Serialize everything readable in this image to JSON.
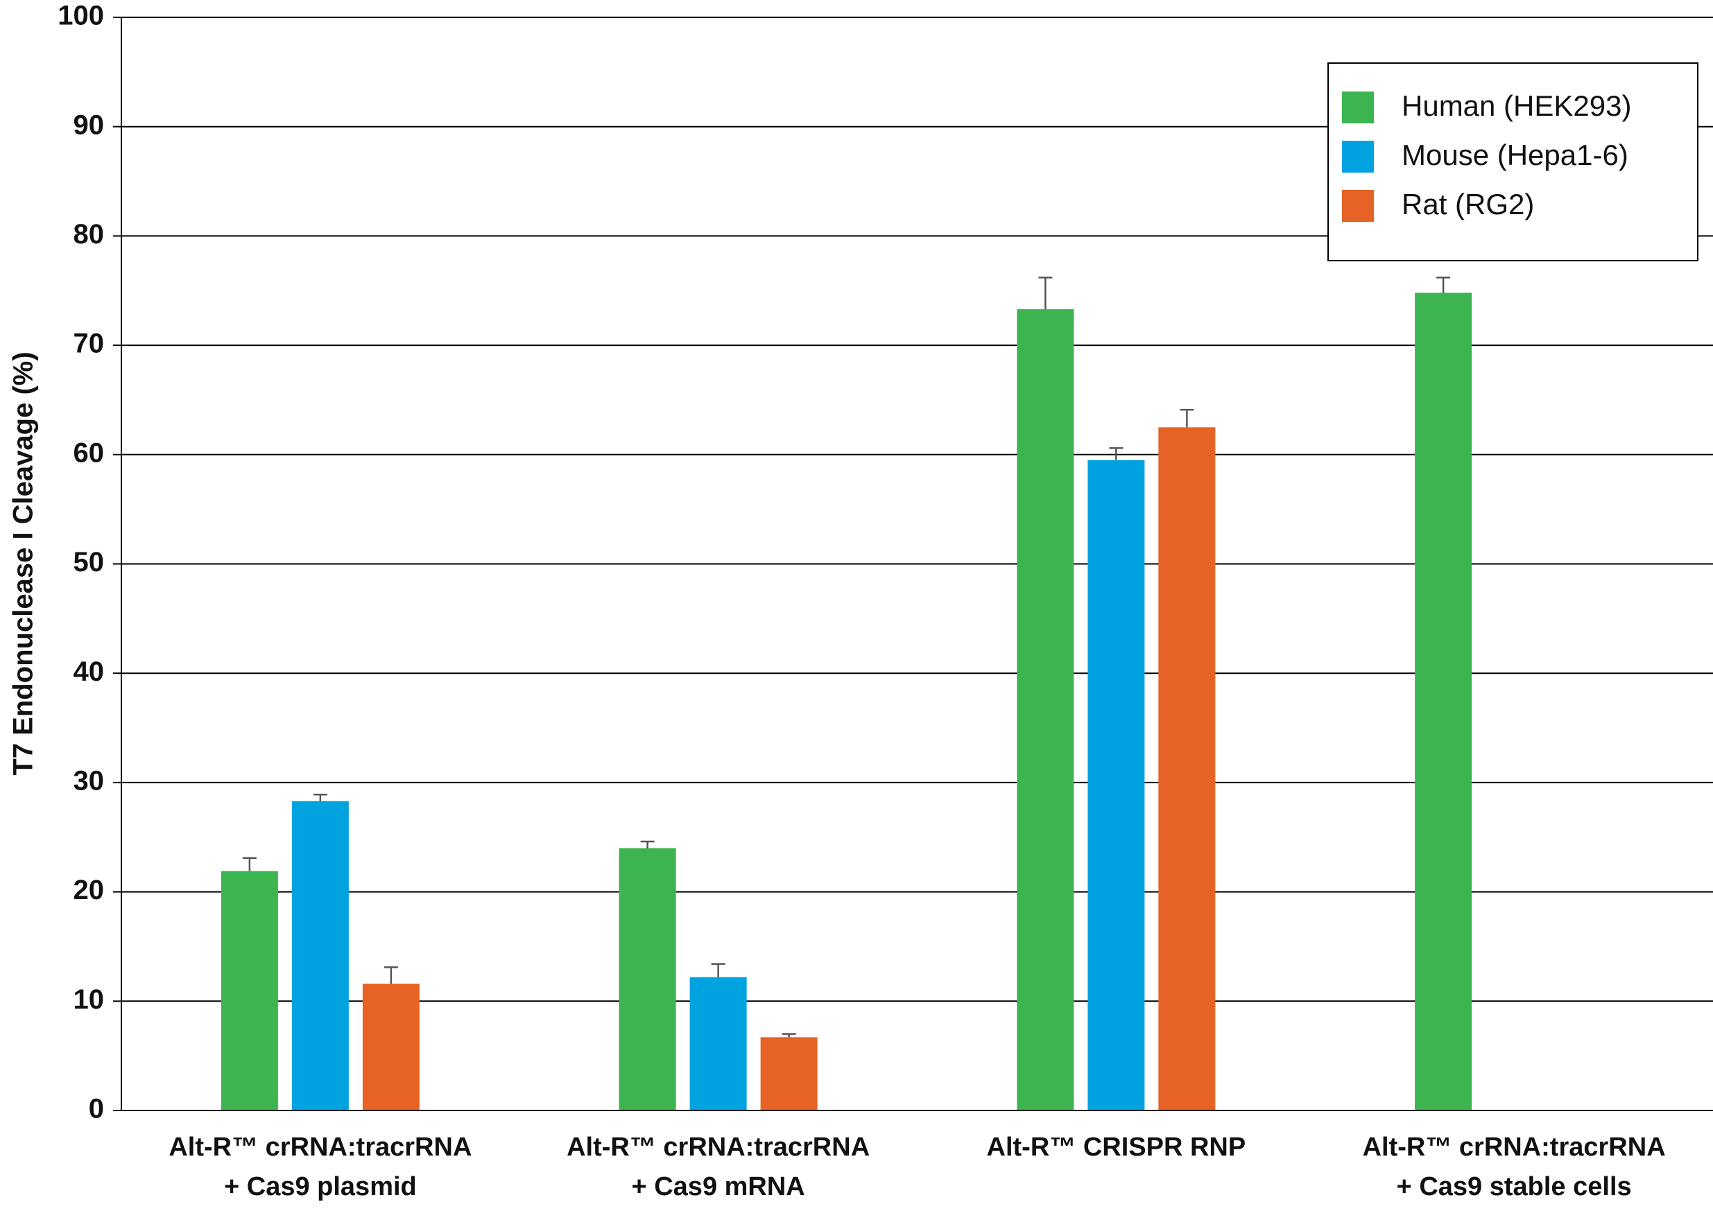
{
  "chart_data": {
    "type": "bar",
    "y_label": "T7 Endonuclease I Cleavage (%)",
    "categories": [
      [
        "Alt-R™ crRNA:tracrRNA",
        "+ Cas9 plasmid"
      ],
      [
        "Alt-R™ crRNA:tracrRNA",
        "+ Cas9 mRNA"
      ],
      [
        "Alt-R™ CRISPR RNP"
      ],
      [
        "Alt-R™ crRNA:tracrRNA",
        "+ Cas9 stable cells"
      ]
    ],
    "series": [
      {
        "name": "Human (HEK293)",
        "color": "#3cb44f",
        "values": [
          21.9,
          24.0,
          73.3,
          74.8
        ],
        "errors": [
          1.2,
          0.6,
          2.9,
          1.4
        ]
      },
      {
        "name": "Mouse (Hepa1-6)",
        "color": "#00a3e0",
        "values": [
          28.3,
          12.2,
          59.5,
          null
        ],
        "errors": [
          0.6,
          1.2,
          1.1,
          null
        ]
      },
      {
        "name": "Rat (RG2)",
        "color": "#e66225",
        "values": [
          11.6,
          6.7,
          62.5,
          null
        ],
        "errors": [
          1.5,
          0.3,
          1.6,
          null
        ]
      }
    ],
    "ylim": [
      0,
      100
    ],
    "yticks": [
      0,
      10,
      20,
      30,
      40,
      50,
      60,
      70,
      80,
      90,
      100
    ],
    "grid": true,
    "legend": "top-right"
  }
}
